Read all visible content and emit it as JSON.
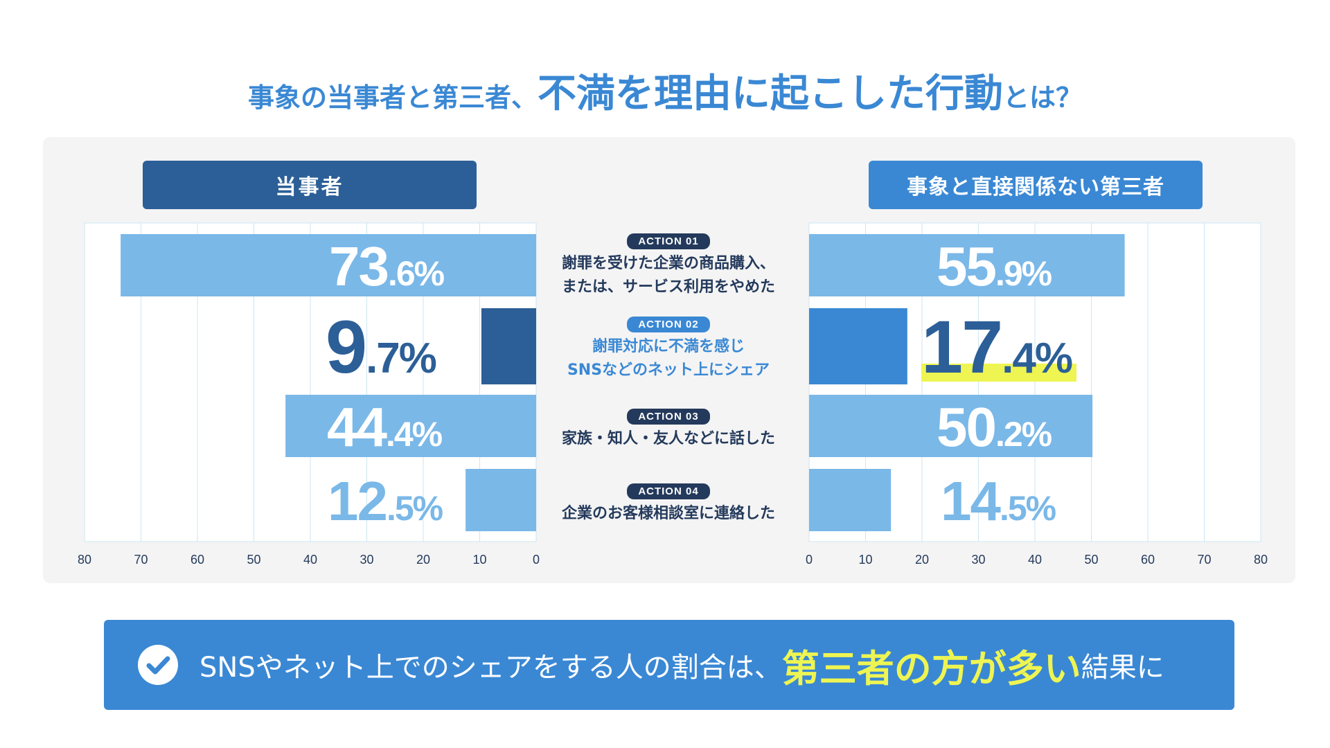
{
  "title": {
    "part1": "事象の当事者と第三者、",
    "part2": "不満を理由に起こした行動",
    "part3": "とは？"
  },
  "headers": {
    "left": "当事者",
    "right": "事象と直接関係ない第三者"
  },
  "actions": [
    {
      "badge": "ACTION 01",
      "label": "謝罪を受けた企業の商品購入、\nまたは、サービス利用をやめた"
    },
    {
      "badge": "ACTION 02",
      "label": "謝罪対応に不満を感じ\nSNSなどのネット上にシェア"
    },
    {
      "badge": "ACTION 03",
      "label": "家族・知人・友人などに話した"
    },
    {
      "badge": "ACTION 04",
      "label": "企業のお客様相談室に連絡した"
    }
  ],
  "left_values": [
    {
      "int": "73",
      "dec": ".6%"
    },
    {
      "int": "9",
      "dec": ".7%"
    },
    {
      "int": "44",
      "dec": ".4%"
    },
    {
      "int": "12",
      "dec": ".5%"
    }
  ],
  "right_values": [
    {
      "int": "55",
      "dec": ".9%"
    },
    {
      "int": "17",
      "dec": ".4%"
    },
    {
      "int": "50",
      "dec": ".2%"
    },
    {
      "int": "14",
      "dec": ".5%"
    }
  ],
  "bottom": {
    "t1": "SNSやネット上でのシェアをする人の割合は、",
    "t2": "第三者の方が多い",
    "t3": "結果に"
  },
  "colors": {
    "light_bar": "#7ab8e8",
    "dark_bar": "#2c5f97",
    "mid_bar": "#3a88d4",
    "highlight": "#eef552"
  },
  "chart_data": {
    "type": "bar",
    "categories": [
      "謝罪を受けた企業の商品購入、または、サービス利用をやめた",
      "謝罪対応に不満を感じSNSなどのネット上にシェア",
      "家族・知人・友人などに話した",
      "企業のお客様相談室に連絡した"
    ],
    "series": [
      {
        "name": "当事者",
        "values": [
          73.6,
          9.7,
          44.4,
          12.5
        ]
      },
      {
        "name": "事象と直接関係ない第三者",
        "values": [
          55.9,
          17.4,
          50.2,
          14.5
        ]
      }
    ],
    "xlim": [
      0,
      80
    ],
    "xticks": [
      0,
      10,
      20,
      30,
      40,
      50,
      60,
      70,
      80
    ],
    "title": "事象の当事者と第三者、不満を理由に起こした行動とは？"
  }
}
